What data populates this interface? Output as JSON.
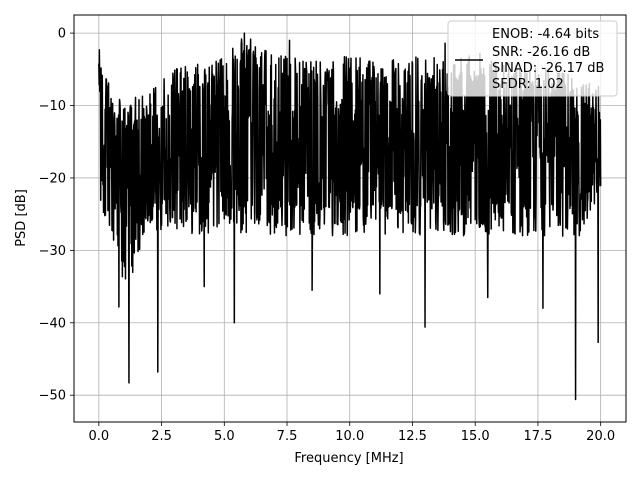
{
  "chart_data": {
    "type": "line",
    "title": "",
    "xlabel": "Frequency [MHz]",
    "ylabel": "PSD [dB]",
    "xlim": [
      -0.99,
      21.01
    ],
    "ylim": [
      -53.7,
      2.5
    ],
    "x_ticks": [
      0.0,
      2.5,
      5.0,
      7.5,
      10.0,
      12.5,
      15.0,
      17.5,
      20.0
    ],
    "x_tick_labels": [
      "0.0",
      "2.5",
      "5.0",
      "7.5",
      "10.0",
      "12.5",
      "15.0",
      "17.5",
      "20.0"
    ],
    "y_ticks": [
      0,
      -10,
      -20,
      -30,
      -40,
      -50
    ],
    "y_tick_labels": [
      "0",
      "−10",
      "−20",
      "−30",
      "−40",
      "−50"
    ],
    "grid": true,
    "legend_position": "top-right",
    "legend_lines": [
      "ENOB: -4.64 bits",
      "SNR: -26.16 dB",
      "SINAD: -26.17 dB",
      "SFDR: 1.02"
    ],
    "series": [
      {
        "color": "#000000",
        "description_of_shape": "dense noise floor spanning 0-20 MHz, mostly between -25 and -5 dB",
        "x_range": [
          0.0,
          20.0
        ],
        "envelope": {
          "x": [
            0.0,
            0.5,
            1.0,
            2.0,
            3.0,
            4.0,
            5.0,
            5.8,
            7.0,
            8.0,
            9.0,
            10.0,
            11.0,
            12.0,
            13.0,
            14.0,
            15.0,
            16.0,
            17.0,
            18.0,
            19.0,
            20.0
          ],
          "upper": [
            -3.0,
            -8.0,
            -9.0,
            -8.0,
            -5.0,
            -4.0,
            -3.5,
            0.0,
            -3.0,
            -3.5,
            -4.0,
            -3.0,
            -4.0,
            -3.5,
            -3.0,
            -4.0,
            -2.5,
            -4.0,
            -4.5,
            -5.0,
            -6.0,
            -7.5
          ],
          "lower": [
            -23.0,
            -30.0,
            -36.0,
            -28.0,
            -27.0,
            -28.0,
            -27.0,
            -28.0,
            -28.0,
            -28.0,
            -28.0,
            -28.0,
            -28.0,
            -28.0,
            -28.0,
            -28.0,
            -28.0,
            -28.0,
            -28.0,
            -28.0,
            -29.0,
            -24.0
          ]
        },
        "notable_dips": [
          {
            "x": 1.2,
            "y": -48.3
          },
          {
            "x": 2.35,
            "y": -46.8
          },
          {
            "x": 5.4,
            "y": -40.0
          },
          {
            "x": 13.0,
            "y": -40.6
          },
          {
            "x": 15.5,
            "y": -36.5
          },
          {
            "x": 17.7,
            "y": -38.0
          },
          {
            "x": 19.0,
            "y": -50.6
          },
          {
            "x": 19.9,
            "y": -42.7
          },
          {
            "x": 0.8,
            "y": -37.8
          },
          {
            "x": 4.2,
            "y": -35.0
          },
          {
            "x": 8.5,
            "y": -35.5
          },
          {
            "x": 11.2,
            "y": -36.0
          }
        ],
        "notable_peaks": [
          {
            "x": 0.02,
            "y": -2.3
          },
          {
            "x": 5.8,
            "y": 0.0
          },
          {
            "x": 7.6,
            "y": -1.0
          },
          {
            "x": 13.8,
            "y": -1.4
          }
        ]
      }
    ]
  }
}
